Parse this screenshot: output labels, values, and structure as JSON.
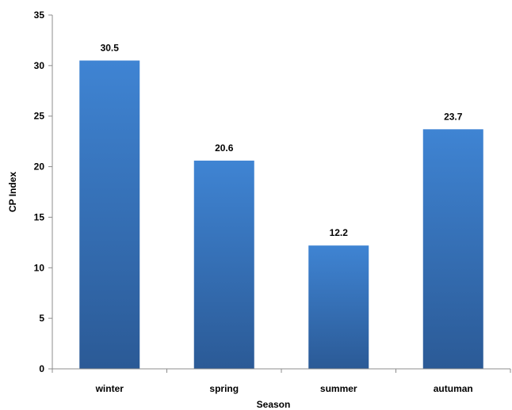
{
  "chart_data": {
    "type": "bar",
    "title": "",
    "xlabel": "Season",
    "ylabel": "CP Index",
    "categories": [
      "winter",
      "spring",
      "summer",
      "autuman"
    ],
    "series": [
      {
        "values": [
          30.5,
          20.6,
          12.2,
          23.7
        ],
        "color": "#3a78c2"
      }
    ],
    "data_labels": [
      "30.5",
      "20.6",
      "12.2",
      "23.7"
    ],
    "ylim": [
      0,
      35
    ],
    "yticks": [
      0,
      5,
      10,
      15,
      20,
      25,
      30,
      35
    ],
    "grid": false,
    "legend": "none",
    "colors": {
      "bar_top": "#3f84d3",
      "bar_bottom": "#2b5a96",
      "axis": "#8c8c8c"
    }
  }
}
